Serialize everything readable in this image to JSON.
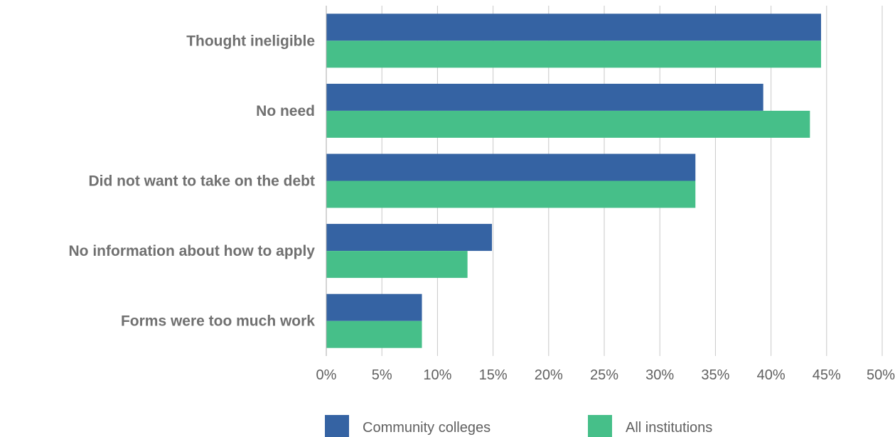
{
  "chart_data": {
    "type": "bar",
    "orientation": "horizontal",
    "categories": [
      "Thought  ineligible",
      "No need",
      "Did not want to take on the debt",
      "No information about how to apply",
      "Forms were too much work"
    ],
    "series": [
      {
        "name": "Community colleges",
        "color": "#3563a3",
        "values": [
          44.5,
          39.3,
          33.2,
          14.9,
          8.6
        ]
      },
      {
        "name": "All institutions",
        "color": "#46bf89",
        "values": [
          44.5,
          43.5,
          33.2,
          12.7,
          8.6
        ]
      }
    ],
    "xlim": [
      0,
      50
    ],
    "ticks": [
      "0%",
      "5%",
      "10%",
      "15%",
      "20%",
      "25%",
      "30%",
      "35%",
      "40%",
      "45%",
      "50%"
    ],
    "grid": true,
    "legend_position": "bottom"
  }
}
